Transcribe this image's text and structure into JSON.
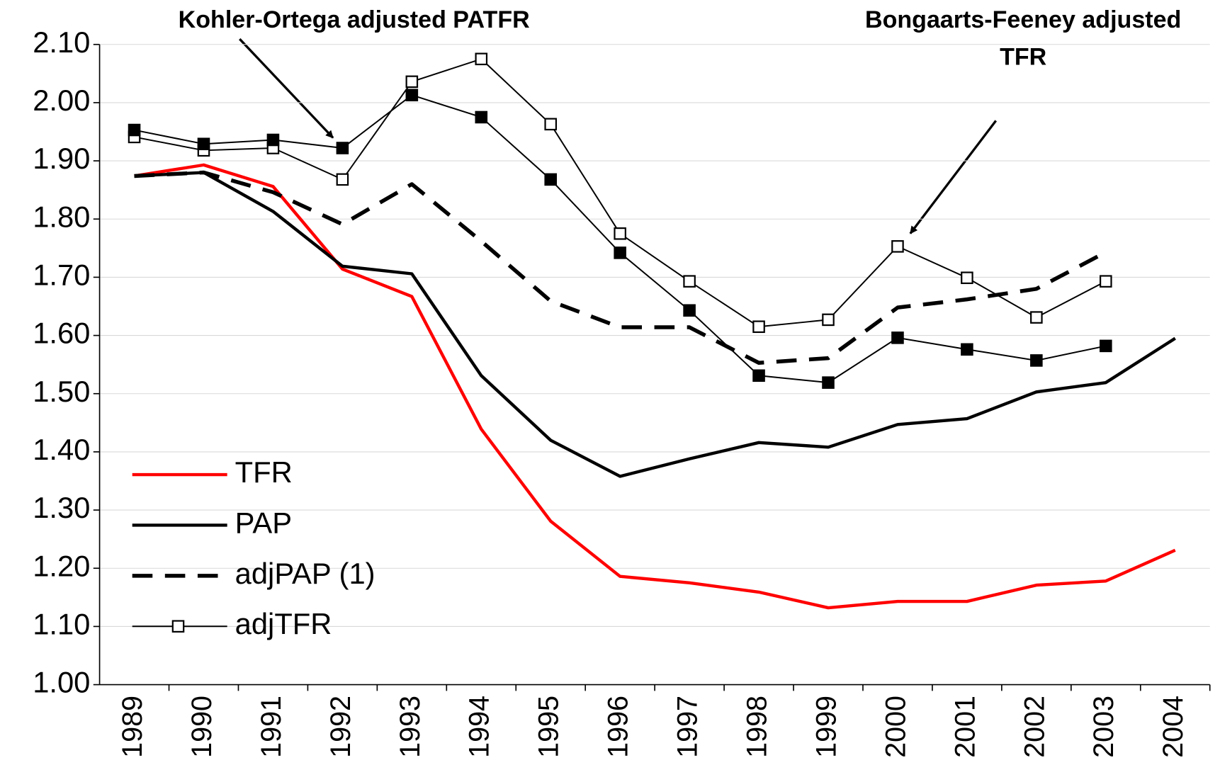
{
  "chart_data": {
    "type": "line",
    "categories": [
      "1989",
      "1990",
      "1991",
      "1992",
      "1993",
      "1994",
      "1995",
      "1996",
      "1997",
      "1998",
      "1999",
      "2000",
      "2001",
      "2002",
      "2003",
      "2004"
    ],
    "ylim": [
      1.0,
      2.1
    ],
    "yticks": [
      {
        "value": 1.0,
        "label": "1.00"
      },
      {
        "value": 1.1,
        "label": "1.10"
      },
      {
        "value": 1.2,
        "label": "1.20"
      },
      {
        "value": 1.3,
        "label": "1.30"
      },
      {
        "value": 1.4,
        "label": "1.40"
      },
      {
        "value": 1.5,
        "label": "1.50"
      },
      {
        "value": 1.6,
        "label": "1.60"
      },
      {
        "value": 1.7,
        "label": "1.70"
      },
      {
        "value": 1.8,
        "label": "1.80"
      },
      {
        "value": 1.9,
        "label": "1.90"
      },
      {
        "value": 2.0,
        "label": "2.00"
      },
      {
        "value": 2.1,
        "label": "2.10"
      }
    ],
    "grid": true,
    "legend": "lower left",
    "series": [
      {
        "name": "TFR",
        "color": "#ff0000",
        "style": "solid",
        "marker": "none",
        "values": [
          1.874,
          1.893,
          1.856,
          1.714,
          1.667,
          1.439,
          1.281,
          1.186,
          1.175,
          1.159,
          1.132,
          1.143,
          1.143,
          1.171,
          1.178,
          1.231
        ]
      },
      {
        "name": "PAP",
        "color": "#000000",
        "style": "solid",
        "marker": "none",
        "values": [
          1.874,
          1.88,
          1.813,
          1.719,
          1.706,
          1.531,
          1.42,
          1.358,
          1.388,
          1.416,
          1.408,
          1.447,
          1.457,
          1.503,
          1.519,
          1.595
        ]
      },
      {
        "name": "adjPAP (1)",
        "color": "#000000",
        "style": "dashed",
        "marker": "none",
        "values": [
          1.874,
          1.88,
          1.846,
          1.791,
          1.86,
          1.762,
          1.659,
          1.614,
          1.614,
          1.553,
          1.561,
          1.648,
          1.662,
          1.68,
          1.743,
          null
        ]
      },
      {
        "name": "adjTFR",
        "color": "#000000",
        "style": "thin",
        "marker": "open-square",
        "values": [
          1.941,
          1.918,
          1.922,
          1.868,
          2.036,
          2.075,
          1.963,
          1.775,
          1.693,
          1.615,
          1.627,
          1.753,
          1.699,
          1.631,
          1.693,
          null
        ]
      },
      {
        "color": "#000000",
        "style": "thin",
        "marker": "filled-square",
        "values": [
          1.953,
          1.929,
          1.936,
          1.922,
          2.013,
          1.975,
          1.868,
          1.742,
          1.643,
          1.531,
          1.519,
          1.596,
          1.576,
          1.557,
          1.582,
          null
        ]
      }
    ],
    "annotations": [
      {
        "lines": [
          "Kohler-Ortega adjusted PATFR"
        ]
      },
      {
        "lines": [
          "Bongaarts-Feeney adjusted",
          "TFR"
        ]
      }
    ]
  }
}
